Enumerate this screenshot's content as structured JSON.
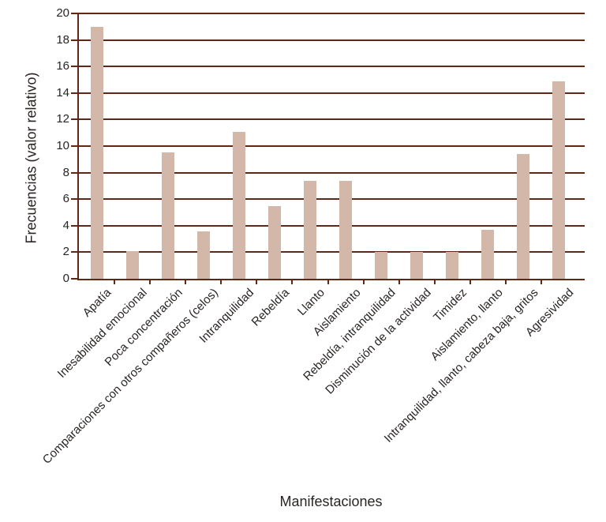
{
  "chart_data": {
    "type": "bar",
    "xlabel": "Manifestaciones",
    "ylabel": "Frecuencias (valor relativo)",
    "ylim": [
      0,
      20
    ],
    "ytick_step": 2,
    "grid": true,
    "legend": "none",
    "categories": [
      "Apatía",
      "Inesabilidad emocional",
      "Poca concentración",
      "Comparaciones con otros compañeros (celos)",
      "Intranquilidad",
      "Rebeldía",
      "Llanto",
      "Aislamiento",
      "Rebeldía, intranquilidad",
      "Disminución de la actividad",
      "Timidez",
      "Aislamiento, llanto",
      "Intranquilidad, llanto, cabeza baja, gritos",
      "Agresividad"
    ],
    "values": [
      19.0,
      2.1,
      9.5,
      3.6,
      11.1,
      5.5,
      7.4,
      7.4,
      2.0,
      2.0,
      2.0,
      3.7,
      9.4,
      14.9
    ],
    "colors": {
      "bar": "#d3b7a8",
      "axis": "#5f2816",
      "text": "#2a2523",
      "background": "#ffffff"
    }
  }
}
